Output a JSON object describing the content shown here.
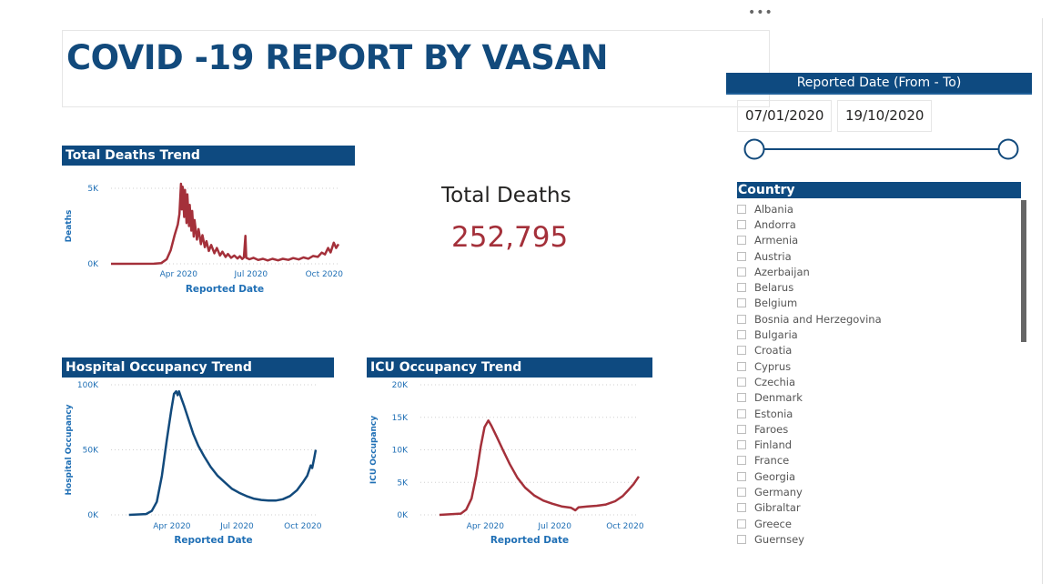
{
  "more_options_glyph": "•••",
  "report_title": "COVID -19 REPORT BY VASAN",
  "colors": {
    "header": "#0e4a80",
    "deaths_line": "#a4303a",
    "hospital_line": "#124a7c",
    "icu_line": "#a4303a",
    "axis_text": "#1f6fb5"
  },
  "kpi": {
    "label": "Total Deaths",
    "value": "252,795"
  },
  "date_slicer": {
    "title": "Reported Date (From - To)",
    "from": "07/01/2020",
    "to": "19/10/2020",
    "range_fraction": [
      0,
      1
    ]
  },
  "country_slicer": {
    "title": "Country",
    "items": [
      "Albania",
      "Andorra",
      "Armenia",
      "Austria",
      "Azerbaijan",
      "Belarus",
      "Belgium",
      "Bosnia and Herzegovina",
      "Bulgaria",
      "Croatia",
      "Cyprus",
      "Czechia",
      "Denmark",
      "Estonia",
      "Faroes",
      "Finland",
      "France",
      "Georgia",
      "Germany",
      "Gibraltar",
      "Greece",
      "Guernsey"
    ]
  },
  "chart_data": [
    {
      "id": "deaths",
      "type": "line",
      "title": "Total Deaths Trend",
      "xlabel": "Reported Date",
      "ylabel": "Deaths",
      "color": "#a4303a",
      "xlim": [
        "2020-01-07",
        "2020-10-19"
      ],
      "ylim": [
        0,
        5000
      ],
      "yticks": [
        {
          "v": 0,
          "label": "0K"
        },
        {
          "v": 5000,
          "label": "5K"
        }
      ],
      "xticks": [
        {
          "d": "2020-04-01",
          "label": "Apr 2020"
        },
        {
          "d": "2020-07-01",
          "label": "Jul 2020"
        },
        {
          "d": "2020-10-01",
          "label": "Oct 2020"
        }
      ],
      "series": [
        {
          "points": [
            [
              "2020-01-07",
              0
            ],
            [
              "2020-03-01",
              5
            ],
            [
              "2020-03-10",
              40
            ],
            [
              "2020-03-17",
              300
            ],
            [
              "2020-03-22",
              900
            ],
            [
              "2020-03-27",
              1900
            ],
            [
              "2020-03-31",
              2600
            ],
            [
              "2020-04-02",
              3300
            ],
            [
              "2020-04-04",
              5300
            ],
            [
              "2020-04-05",
              3600
            ],
            [
              "2020-04-06",
              5100
            ],
            [
              "2020-04-08",
              3100
            ],
            [
              "2020-04-09",
              4900
            ],
            [
              "2020-04-11",
              2700
            ],
            [
              "2020-04-12",
              4600
            ],
            [
              "2020-04-14",
              2500
            ],
            [
              "2020-04-15",
              3900
            ],
            [
              "2020-04-17",
              2200
            ],
            [
              "2020-04-18",
              3500
            ],
            [
              "2020-04-20",
              1800
            ],
            [
              "2020-04-21",
              2900
            ],
            [
              "2020-04-24",
              1600
            ],
            [
              "2020-04-26",
              2300
            ],
            [
              "2020-04-29",
              1300
            ],
            [
              "2020-05-01",
              1900
            ],
            [
              "2020-05-04",
              1100
            ],
            [
              "2020-05-06",
              1500
            ],
            [
              "2020-05-09",
              850
            ],
            [
              "2020-05-12",
              1250
            ],
            [
              "2020-05-16",
              700
            ],
            [
              "2020-05-19",
              1050
            ],
            [
              "2020-05-23",
              550
            ],
            [
              "2020-05-26",
              800
            ],
            [
              "2020-05-30",
              450
            ],
            [
              "2020-06-02",
              650
            ],
            [
              "2020-06-06",
              400
            ],
            [
              "2020-06-10",
              550
            ],
            [
              "2020-06-14",
              350
            ],
            [
              "2020-06-17",
              500
            ],
            [
              "2020-06-20",
              320
            ],
            [
              "2020-06-22",
              420
            ],
            [
              "2020-06-24",
              1850
            ],
            [
              "2020-06-25",
              400
            ],
            [
              "2020-06-29",
              300
            ],
            [
              "2020-07-04",
              400
            ],
            [
              "2020-07-10",
              250
            ],
            [
              "2020-07-16",
              330
            ],
            [
              "2020-07-22",
              220
            ],
            [
              "2020-07-28",
              330
            ],
            [
              "2020-08-04",
              230
            ],
            [
              "2020-08-10",
              330
            ],
            [
              "2020-08-17",
              260
            ],
            [
              "2020-08-23",
              380
            ],
            [
              "2020-08-30",
              290
            ],
            [
              "2020-09-05",
              420
            ],
            [
              "2020-09-11",
              340
            ],
            [
              "2020-09-17",
              520
            ],
            [
              "2020-09-23",
              460
            ],
            [
              "2020-09-28",
              740
            ],
            [
              "2020-10-02",
              620
            ],
            [
              "2020-10-06",
              1050
            ],
            [
              "2020-10-09",
              750
            ],
            [
              "2020-10-13",
              1400
            ],
            [
              "2020-10-16",
              1050
            ],
            [
              "2020-10-19",
              1300
            ]
          ]
        }
      ]
    },
    {
      "id": "hospital",
      "type": "line",
      "title": "Hospital Occupancy Trend",
      "xlabel": "Reported Date",
      "ylabel": "Hospital Occupancy",
      "color": "#124a7c",
      "xlim": [
        "2020-01-07",
        "2020-10-19"
      ],
      "ylim": [
        0,
        100000
      ],
      "yticks": [
        {
          "v": 0,
          "label": "0K"
        },
        {
          "v": 50000,
          "label": "50K"
        },
        {
          "v": 100000,
          "label": "100K"
        }
      ],
      "xticks": [
        {
          "d": "2020-04-01",
          "label": "Apr 2020"
        },
        {
          "d": "2020-07-01",
          "label": "Jul 2020"
        },
        {
          "d": "2020-10-01",
          "label": "Oct 2020"
        }
      ],
      "series": [
        {
          "points": [
            [
              "2020-02-01",
              0
            ],
            [
              "2020-02-25",
              600
            ],
            [
              "2020-03-04",
              3000
            ],
            [
              "2020-03-11",
              10000
            ],
            [
              "2020-03-18",
              30000
            ],
            [
              "2020-03-25",
              58000
            ],
            [
              "2020-03-31",
              80000
            ],
            [
              "2020-04-04",
              93000
            ],
            [
              "2020-04-07",
              95000
            ],
            [
              "2020-04-09",
              92000
            ],
            [
              "2020-04-11",
              95000
            ],
            [
              "2020-04-14",
              90000
            ],
            [
              "2020-04-18",
              84000
            ],
            [
              "2020-04-25",
              72000
            ],
            [
              "2020-05-01",
              62000
            ],
            [
              "2020-05-08",
              53000
            ],
            [
              "2020-05-16",
              45000
            ],
            [
              "2020-05-25",
              37000
            ],
            [
              "2020-06-04",
              30000
            ],
            [
              "2020-06-14",
              25000
            ],
            [
              "2020-06-24",
              20000
            ],
            [
              "2020-07-04",
              17000
            ],
            [
              "2020-07-14",
              14500
            ],
            [
              "2020-07-24",
              12500
            ],
            [
              "2020-08-04",
              11500
            ],
            [
              "2020-08-14",
              11000
            ],
            [
              "2020-08-24",
              11000
            ],
            [
              "2020-09-03",
              12000
            ],
            [
              "2020-09-13",
              14500
            ],
            [
              "2020-09-23",
              19000
            ],
            [
              "2020-10-01",
              25000
            ],
            [
              "2020-10-07",
              30000
            ],
            [
              "2020-10-12",
              38000
            ],
            [
              "2020-10-14",
              36000
            ],
            [
              "2020-10-17",
              44000
            ],
            [
              "2020-10-19",
              50000
            ]
          ]
        }
      ]
    },
    {
      "id": "icu",
      "type": "line",
      "title": "ICU Occupancy Trend",
      "xlabel": "Reported Date",
      "ylabel": "ICU Occupancy",
      "color": "#a4303a",
      "xlim": [
        "2020-01-07",
        "2020-10-19"
      ],
      "ylim": [
        0,
        20000
      ],
      "yticks": [
        {
          "v": 0,
          "label": "0K"
        },
        {
          "v": 5000,
          "label": "5K"
        },
        {
          "v": 10000,
          "label": "10K"
        },
        {
          "v": 15000,
          "label": "15K"
        },
        {
          "v": 20000,
          "label": "20K"
        }
      ],
      "xticks": [
        {
          "d": "2020-04-01",
          "label": "Apr 2020"
        },
        {
          "d": "2020-07-01",
          "label": "Jul 2020"
        },
        {
          "d": "2020-10-01",
          "label": "Oct 2020"
        }
      ],
      "series": [
        {
          "points": [
            [
              "2020-02-01",
              0
            ],
            [
              "2020-02-29",
              200
            ],
            [
              "2020-03-07",
              800
            ],
            [
              "2020-03-14",
              2500
            ],
            [
              "2020-03-20",
              6000
            ],
            [
              "2020-03-26",
              10500
            ],
            [
              "2020-03-31",
              13500
            ],
            [
              "2020-04-05",
              14500
            ],
            [
              "2020-04-09",
              13700
            ],
            [
              "2020-04-16",
              12000
            ],
            [
              "2020-04-24",
              10000
            ],
            [
              "2020-05-03",
              7800
            ],
            [
              "2020-05-13",
              5700
            ],
            [
              "2020-05-23",
              4200
            ],
            [
              "2020-06-04",
              3000
            ],
            [
              "2020-06-16",
              2200
            ],
            [
              "2020-06-28",
              1700
            ],
            [
              "2020-07-10",
              1300
            ],
            [
              "2020-07-22",
              1100
            ],
            [
              "2020-07-28",
              700
            ],
            [
              "2020-08-01",
              1150
            ],
            [
              "2020-08-13",
              1300
            ],
            [
              "2020-08-25",
              1400
            ],
            [
              "2020-09-06",
              1600
            ],
            [
              "2020-09-18",
              2100
            ],
            [
              "2020-09-28",
              2900
            ],
            [
              "2020-10-06",
              3900
            ],
            [
              "2020-10-12",
              4700
            ],
            [
              "2020-10-19",
              5900
            ]
          ]
        }
      ]
    }
  ]
}
